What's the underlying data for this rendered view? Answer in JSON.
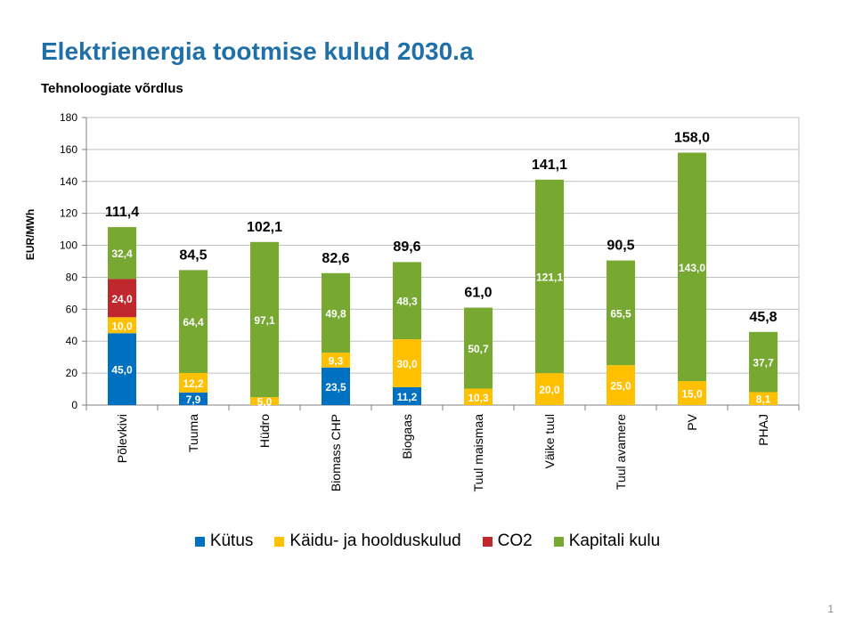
{
  "slide": {
    "title": "Elektrienergia tootmise kulud 2030.a",
    "page_number": "1"
  },
  "chart_data": {
    "type": "bar",
    "stacked": true,
    "subtitle": "Tehnoloogiate võrdlus",
    "ylabel": "EUR/MWh",
    "xlabel": "",
    "ylim": [
      0,
      180
    ],
    "yticks": [
      0,
      20,
      40,
      60,
      80,
      100,
      120,
      140,
      160,
      180
    ],
    "grid": true,
    "legend_position": "bottom",
    "categories": [
      "Põlevkivi",
      "Tuuma",
      "Hüdro",
      "Biomass CHP",
      "Biogaas",
      "Tuul maismaa",
      "Väike tuul",
      "Tuul avamere",
      "PV",
      "PHAJ"
    ],
    "series": [
      {
        "name": "Kütus",
        "color": "#0070c0",
        "values": [
          45.0,
          7.9,
          0,
          23.5,
          11.2,
          0,
          0,
          0,
          0,
          0
        ],
        "labels": [
          "45,0",
          "7,9",
          "",
          "23,5",
          "11,2",
          "",
          "",
          "",
          "",
          ""
        ]
      },
      {
        "name": "Käidu- ja hoolduskulud",
        "color": "#ffc000",
        "values": [
          10.0,
          12.2,
          5.0,
          9.3,
          30.0,
          10.3,
          20.0,
          25.0,
          15.0,
          8.1
        ],
        "labels": [
          "10,0",
          "12,2",
          "5,0",
          "9,3",
          "30,0",
          "10,3",
          "20,0",
          "25,0",
          "15,0",
          "8,1"
        ]
      },
      {
        "name": "CO2",
        "color": "#c0282d",
        "values": [
          24.0,
          0,
          0,
          0,
          0,
          0,
          0,
          0,
          0,
          0
        ],
        "labels": [
          "24,0",
          "",
          "",
          "",
          "",
          "",
          "",
          "",
          "",
          ""
        ]
      },
      {
        "name": "Kapitali kulu",
        "color": "#77a832",
        "values": [
          32.4,
          64.4,
          97.1,
          49.8,
          48.3,
          50.7,
          121.1,
          65.5,
          143.0,
          37.7
        ],
        "labels": [
          "32,4",
          "64,4",
          "97,1",
          "49,8",
          "48,3",
          "50,7",
          "121,1",
          "65,5",
          "143,0",
          "37,7"
        ]
      }
    ],
    "totals": [
      111.4,
      84.5,
      102.1,
      82.6,
      89.6,
      61.0,
      141.1,
      90.5,
      158.0,
      45.8
    ],
    "total_labels": [
      "111,4",
      "84,5",
      "102,1",
      "82,6",
      "89,6",
      "61,0",
      "141,1",
      "90,5",
      "158,0",
      "45,8"
    ]
  }
}
